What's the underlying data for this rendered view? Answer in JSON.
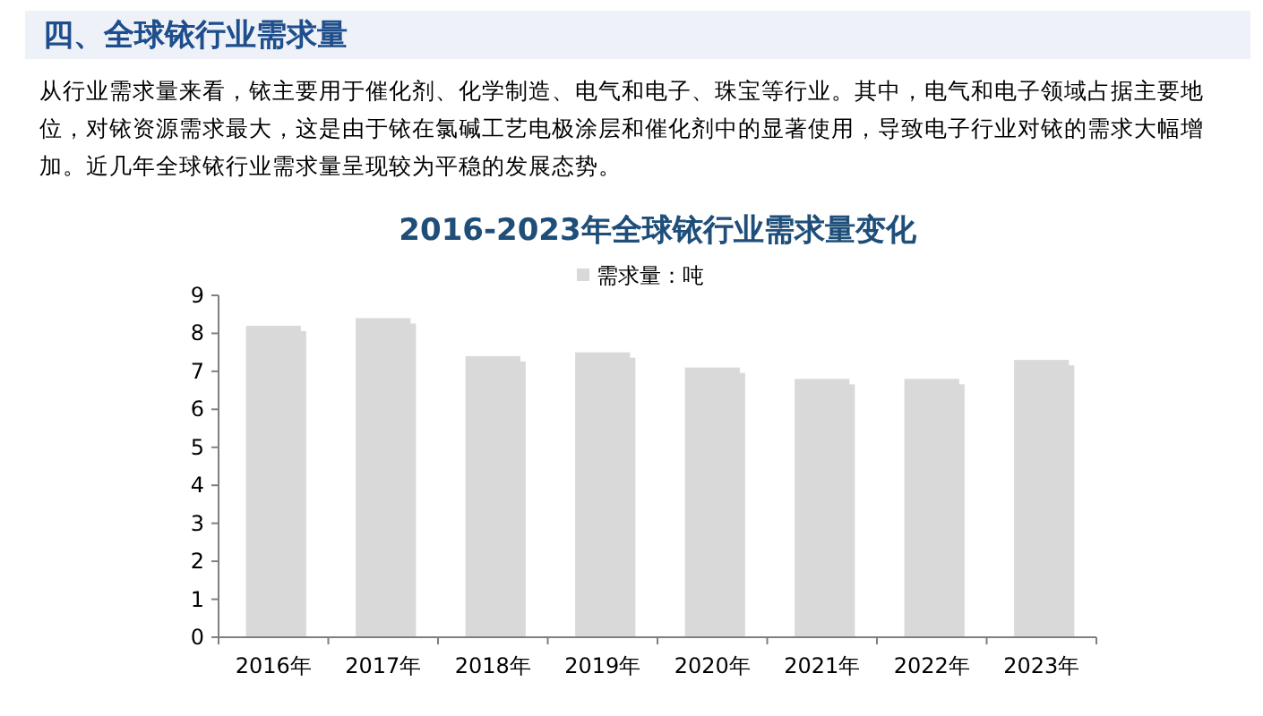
{
  "chart_data": {
    "type": "bar",
    "title": "2016-2023年全球铱行业需求量变化",
    "annotations": [
      "四、全球铱行业需求量",
      "从行业需求量来看，铱主要用于催化剂、化学制造、电气和电子、珠宝等行业。其中，电气和电子领域占据主要地位，对铱资源需求最大，这是由于铱在氯碱工艺电极涂层和催化剂中的显著使用，导致电子行业对铱的需求大幅增加。近几年全球铱行业需求量呈现较为平稳的发展态势。"
    ],
    "categories": [
      "2016年",
      "2017年",
      "2018年",
      "2019年",
      "2020年",
      "2021年",
      "2022年",
      "2023年"
    ],
    "series": [
      {
        "name": "需求量：吨",
        "color": "#d9d9d9",
        "values": [
          8.2,
          8.4,
          7.4,
          7.5,
          7.1,
          6.8,
          6.8,
          7.3
        ]
      }
    ],
    "ylim": [
      0,
      9
    ],
    "yticks": [
      0,
      1,
      2,
      3,
      4,
      5,
      6,
      7,
      8,
      9
    ],
    "grid": false,
    "legend": "top"
  }
}
